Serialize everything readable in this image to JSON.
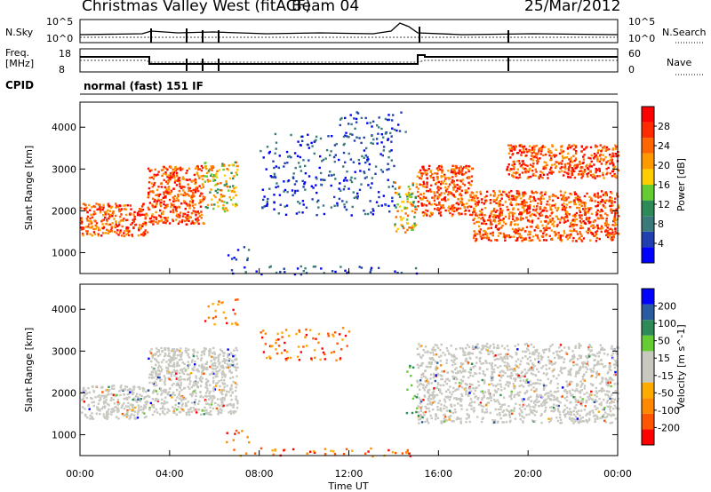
{
  "header": {
    "station": "Christmas Valley West (fitACF)",
    "beam": "Beam 04",
    "date": "25/Mar/2012"
  },
  "strip_labels": {
    "nsky": "N.Sky",
    "nsearch": "N.Search",
    "freq_line1": "Freq.",
    "freq_line2": "[MHz]",
    "nave": "Nave",
    "cpid": "CPID",
    "mode": "normal (fast) 151 IF",
    "noise_ticks": [
      "10^5",
      "10^0"
    ],
    "freq_ticks": [
      "18",
      "8"
    ],
    "nave_ticks": [
      "60",
      "0"
    ]
  },
  "colors": {
    "power": [
      "#0000ff",
      "#2040b0",
      "#3a7a7a",
      "#2e8b57",
      "#66cc33",
      "#ffcc00",
      "#ff9900",
      "#ff6600",
      "#ff2a00",
      "#ff0000"
    ],
    "velocity": [
      "#ff0000",
      "#ff5500",
      "#ff8800",
      "#ffaa00",
      "#c8c8c0",
      "#c8c8c0",
      "#66cc33",
      "#2e8b57",
      "#2a5aa0",
      "#0000ff"
    ]
  },
  "chart_data": [
    {
      "type": "heatmap",
      "quantity": "Power",
      "xlabel": "Time UT",
      "ylabel": "Slant Range [km]",
      "colorbar_label": "Power [dB]",
      "colorbar_ticks": [
        "28",
        "24",
        "20",
        "16",
        "12",
        "8",
        "4"
      ],
      "y_ticks": [
        "4000",
        "3000",
        "2000",
        "1000"
      ],
      "ylim": [
        500,
        4600
      ],
      "x_ticks": [
        "00:00",
        "04:00",
        "08:00",
        "12:00",
        "16:00",
        "20:00",
        "00:00"
      ],
      "xlim_hours": [
        0,
        24
      ],
      "echo_regions": [
        {
          "t": [
            0.0,
            3.0
          ],
          "r": [
            1400,
            2200
          ],
          "level": "high"
        },
        {
          "t": [
            3.0,
            5.5
          ],
          "r": [
            1700,
            3100
          ],
          "level": "high"
        },
        {
          "t": [
            5.5,
            7.0
          ],
          "r": [
            2000,
            3200
          ],
          "level": "medium"
        },
        {
          "t": [
            6.5,
            7.5
          ],
          "r": [
            800,
            1200
          ],
          "level": "low"
        },
        {
          "t": [
            8.0,
            14.0
          ],
          "r": [
            1900,
            3900
          ],
          "level": "low"
        },
        {
          "t": [
            11.5,
            14.5
          ],
          "r": [
            3700,
            4400
          ],
          "level": "low"
        },
        {
          "t": [
            14.0,
            15.0
          ],
          "r": [
            1500,
            2700
          ],
          "level": "medium"
        },
        {
          "t": [
            15.0,
            17.5
          ],
          "r": [
            1900,
            3100
          ],
          "level": "high"
        },
        {
          "t": [
            17.5,
            24.0
          ],
          "r": [
            1300,
            2500
          ],
          "level": "high"
        },
        {
          "t": [
            19.0,
            24.0
          ],
          "r": [
            2800,
            3600
          ],
          "level": "high"
        },
        {
          "t": [
            6.5,
            15.0
          ],
          "r": [
            500,
            700
          ],
          "level": "low"
        }
      ]
    },
    {
      "type": "heatmap",
      "quantity": "Velocity",
      "xlabel": "Time UT",
      "ylabel": "Slant Range [km]",
      "colorbar_label": "Velocity [m s^-1]",
      "colorbar_ticks": [
        "200",
        "100",
        "50",
        "15",
        "-15",
        "-50",
        "-100",
        "-200"
      ],
      "y_ticks": [
        "4000",
        "3000",
        "2000",
        "1000"
      ],
      "ylim": [
        500,
        4600
      ],
      "x_ticks": [
        "00:00",
        "04:00",
        "08:00",
        "12:00",
        "16:00",
        "20:00",
        "00:00"
      ],
      "xlim_hours": [
        0,
        24
      ],
      "echo_regions": [
        {
          "t": [
            0.0,
            3.0
          ],
          "r": [
            1400,
            2200
          ],
          "level": "ground"
        },
        {
          "t": [
            3.0,
            7.0
          ],
          "r": [
            1500,
            3100
          ],
          "level": "ground"
        },
        {
          "t": [
            5.5,
            7.0
          ],
          "r": [
            3600,
            4300
          ],
          "level": "negative"
        },
        {
          "t": [
            6.5,
            7.5
          ],
          "r": [
            800,
            1200
          ],
          "level": "negative"
        },
        {
          "t": [
            8.0,
            12.0
          ],
          "r": [
            2800,
            3600
          ],
          "level": "negative"
        },
        {
          "t": [
            14.5,
            15.0
          ],
          "r": [
            1500,
            2700
          ],
          "level": "positive"
        },
        {
          "t": [
            15.0,
            24.0
          ],
          "r": [
            1300,
            3200
          ],
          "level": "ground"
        },
        {
          "t": [
            6.5,
            15.0
          ],
          "r": [
            500,
            700
          ],
          "level": "negative"
        }
      ]
    }
  ]
}
